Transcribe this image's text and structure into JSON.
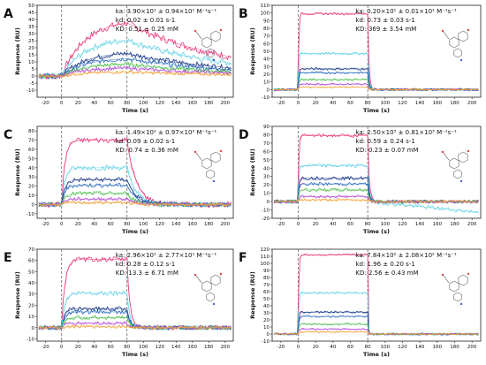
{
  "chart_data": [
    {
      "panel": "A",
      "type": "line",
      "xlabel": "Time (s)",
      "ylabel": "Response (RU)",
      "xlim": [
        -30,
        210
      ],
      "ylim": [
        -15,
        50
      ],
      "xticks": [
        "-20",
        "0",
        "20",
        "40",
        "60",
        "80",
        "100",
        "120",
        "140",
        "160",
        "180",
        "200"
      ],
      "yticks": [
        "-10",
        "-5",
        "0",
        "5",
        "10",
        "15",
        "20",
        "25",
        "30",
        "35",
        "40",
        "45",
        "50"
      ],
      "injection_start": 0,
      "injection_end": 80,
      "annotations": [
        "ka: 3.90×10¹ ± 0.94×10¹ M⁻¹s⁻¹",
        "kd: 0.02 ± 0.01 s-1",
        "KD: 0.51 ± 0.25 mM"
      ],
      "series": [
        {
          "color": "#e8397d",
          "peak": 40,
          "decay": 0.008,
          "noise": 2.6,
          "shape": "slow"
        },
        {
          "color": "#67d3e6",
          "peak": 27,
          "decay": 0.008,
          "noise": 2.3,
          "shape": "slow"
        },
        {
          "color": "#1f3c88",
          "peak": 17,
          "decay": 0.008,
          "noise": 2.0,
          "shape": "slow"
        },
        {
          "color": "#2f6fbf",
          "peak": 13,
          "decay": 0.008,
          "noise": 1.8,
          "shape": "slow"
        },
        {
          "color": "#4fbf4f",
          "peak": 9,
          "decay": 0.008,
          "noise": 1.6,
          "shape": "slow"
        },
        {
          "color": "#b54fd8",
          "peak": 6,
          "decay": 0.008,
          "noise": 1.4,
          "shape": "slow"
        },
        {
          "color": "#f0a43a",
          "peak": 3,
          "decay": 0.008,
          "noise": 1.2,
          "shape": "slow"
        }
      ]
    },
    {
      "panel": "B",
      "type": "line",
      "xlabel": "Time (s)",
      "ylabel": "Response (RU)",
      "xlim": [
        -30,
        210
      ],
      "ylim": [
        -10,
        110
      ],
      "xticks": [
        "-20",
        "0",
        "20",
        "40",
        "60",
        "80",
        "100",
        "120",
        "140",
        "160",
        "180",
        "200"
      ],
      "yticks": [
        "-10",
        "0",
        "10",
        "20",
        "30",
        "40",
        "50",
        "60",
        "70",
        "80",
        "90",
        "100",
        "110"
      ],
      "injection_start": 0,
      "injection_end": 80,
      "annotations": [
        "ka: 0.20×10¹ ± 0.01×10¹ M⁻¹s⁻¹",
        "kd: 0.73 ± 0.03 s-1",
        "KD: 369 ± 3.54 mM"
      ],
      "series": [
        {
          "color": "#e8397d",
          "peak": 99,
          "decay": 0.73,
          "noise": 1.5,
          "shape": "square"
        },
        {
          "color": "#67d3e6",
          "peak": 47,
          "decay": 0.73,
          "noise": 1.8,
          "shape": "square"
        },
        {
          "color": "#1f3c88",
          "peak": 27,
          "decay": 0.73,
          "noise": 1.6,
          "shape": "square"
        },
        {
          "color": "#2f6fbf",
          "peak": 22,
          "decay": 0.73,
          "noise": 1.5,
          "shape": "square"
        },
        {
          "color": "#4fbf4f",
          "peak": 13,
          "decay": 0.73,
          "noise": 1.4,
          "shape": "square"
        },
        {
          "color": "#b54fd8",
          "peak": 7,
          "decay": 0.73,
          "noise": 1.2,
          "shape": "square"
        },
        {
          "color": "#f0a43a",
          "peak": 3,
          "decay": 0.73,
          "noise": 1.0,
          "shape": "square"
        }
      ]
    },
    {
      "panel": "C",
      "type": "line",
      "xlabel": "Time (s)",
      "ylabel": "Response (RU)",
      "xlim": [
        -30,
        210
      ],
      "ylim": [
        -15,
        85
      ],
      "xticks": [
        "-20",
        "0",
        "20",
        "40",
        "60",
        "80",
        "100",
        "120",
        "140",
        "160",
        "180",
        "200"
      ],
      "yticks": [
        "-10",
        "0",
        "10",
        "20",
        "30",
        "40",
        "50",
        "60",
        "70",
        "80"
      ],
      "injection_start": 0,
      "injection_end": 80,
      "annotations": [
        "ka: 1.49×10² ± 0.97×10² M⁻¹s⁻¹",
        "kd: 0.09 ± 0.02 s-1",
        "KD: 0.74 ± 0.36 mM"
      ],
      "series": [
        {
          "color": "#e8397d",
          "peak": 70,
          "decay": 0.09,
          "noise": 3.0,
          "shape": "fast"
        },
        {
          "color": "#67d3e6",
          "peak": 40,
          "decay": 0.09,
          "noise": 3.0,
          "shape": "fast"
        },
        {
          "color": "#1f3c88",
          "peak": 27,
          "decay": 0.09,
          "noise": 2.6,
          "shape": "fast"
        },
        {
          "color": "#2f6fbf",
          "peak": 21,
          "decay": 0.09,
          "noise": 2.4,
          "shape": "fast"
        },
        {
          "color": "#4fbf4f",
          "peak": 12,
          "decay": 0.09,
          "noise": 2.4,
          "shape": "fast"
        },
        {
          "color": "#b54fd8",
          "peak": 6,
          "decay": 0.09,
          "noise": 2.0,
          "shape": "fast"
        },
        {
          "color": "#f0a43a",
          "peak": 2,
          "decay": 0.09,
          "noise": 1.8,
          "shape": "fast"
        }
      ]
    },
    {
      "panel": "D",
      "type": "line",
      "xlabel": "Time (s)",
      "ylabel": "Response (RU)",
      "xlim": [
        -30,
        210
      ],
      "ylim": [
        -20,
        90
      ],
      "xticks": [
        "-20",
        "0",
        "20",
        "40",
        "60",
        "80",
        "100",
        "120",
        "140",
        "160",
        "180",
        "200"
      ],
      "yticks": [
        "-20",
        "-10",
        "0",
        "10",
        "20",
        "30",
        "40",
        "50",
        "60",
        "70",
        "80",
        "90"
      ],
      "injection_start": 0,
      "injection_end": 80,
      "annotations": [
        "ka: 2.50×10³ ± 0.81×10³ M⁻¹s⁻¹",
        "kd: 0.59 ± 0.24 s-1",
        "KD: 0.23 ± 0.07 mM"
      ],
      "series": [
        {
          "color": "#e8397d",
          "peak": 79,
          "decay": 0.59,
          "noise": 2.0,
          "shape": "square"
        },
        {
          "color": "#67d3e6",
          "peak": 43,
          "decay": 0.59,
          "noise": 2.4,
          "shape": "square",
          "drift": -12
        },
        {
          "color": "#1f3c88",
          "peak": 28,
          "decay": 0.59,
          "noise": 2.2,
          "shape": "square"
        },
        {
          "color": "#2f6fbf",
          "peak": 21,
          "decay": 0.59,
          "noise": 2.0,
          "shape": "square"
        },
        {
          "color": "#4fbf4f",
          "peak": 14,
          "decay": 0.59,
          "noise": 2.0,
          "shape": "square"
        },
        {
          "color": "#b54fd8",
          "peak": 6,
          "decay": 0.59,
          "noise": 1.8,
          "shape": "square"
        },
        {
          "color": "#f0a43a",
          "peak": 2,
          "decay": 0.59,
          "noise": 1.6,
          "shape": "square"
        }
      ]
    },
    {
      "panel": "E",
      "type": "line",
      "xlabel": "Time (s)",
      "ylabel": "Response (RU)",
      "xlim": [
        -30,
        210
      ],
      "ylim": [
        -12,
        70
      ],
      "xticks": [
        "-20",
        "0",
        "20",
        "40",
        "60",
        "80",
        "100",
        "120",
        "140",
        "160",
        "180",
        "200"
      ],
      "yticks": [
        "-10",
        "0",
        "10",
        "20",
        "30",
        "40",
        "50",
        "60",
        "70"
      ],
      "injection_start": 0,
      "injection_end": 80,
      "annotations": [
        "ka: 2.96×10¹ ± 2.77×10¹ M⁻¹s⁻¹",
        "kd: 0.28 ± 0.12 s-1",
        "KD: 13.3 ± 6.71 mM"
      ],
      "series": [
        {
          "color": "#e8397d",
          "peak": 61,
          "decay": 0.28,
          "noise": 2.2,
          "shape": "fast"
        },
        {
          "color": "#67d3e6",
          "peak": 31,
          "decay": 0.28,
          "noise": 2.2,
          "shape": "fast"
        },
        {
          "color": "#1f3c88",
          "peak": 17,
          "decay": 0.28,
          "noise": 2.0,
          "shape": "fast"
        },
        {
          "color": "#2f6fbf",
          "peak": 14,
          "decay": 0.28,
          "noise": 1.8,
          "shape": "fast"
        },
        {
          "color": "#4fbf4f",
          "peak": 9,
          "decay": 0.28,
          "noise": 1.8,
          "shape": "fast"
        },
        {
          "color": "#b54fd8",
          "peak": 4,
          "decay": 0.28,
          "noise": 1.6,
          "shape": "fast"
        },
        {
          "color": "#f0a43a",
          "peak": 1,
          "decay": 0.28,
          "noise": 1.4,
          "shape": "fast"
        }
      ]
    },
    {
      "panel": "F",
      "type": "line",
      "xlabel": "Time (s)",
      "ylabel": "Response (RU)",
      "xlim": [
        -30,
        210
      ],
      "ylim": [
        -10,
        120
      ],
      "xticks": [
        "-20",
        "0",
        "20",
        "40",
        "60",
        "80",
        "100",
        "120",
        "140",
        "160",
        "180",
        "200"
      ],
      "yticks": [
        "-10",
        "0",
        "10",
        "20",
        "30",
        "40",
        "50",
        "60",
        "70",
        "80",
        "90",
        "100",
        "110",
        "120"
      ],
      "injection_start": 0,
      "injection_end": 80,
      "annotations": [
        "ka: 7.84×10² ± 2.08×10² M⁻¹s⁻¹",
        "kd: 1.96 ± 0.20 s-1",
        "KD: 2.56 ± 0.43 mM"
      ],
      "series": [
        {
          "color": "#e8397d",
          "peak": 112,
          "decay": 1.96,
          "noise": 1.4,
          "shape": "square"
        },
        {
          "color": "#67d3e6",
          "peak": 58,
          "decay": 1.96,
          "noise": 1.6,
          "shape": "square"
        },
        {
          "color": "#1f3c88",
          "peak": 31,
          "decay": 1.96,
          "noise": 1.5,
          "shape": "square"
        },
        {
          "color": "#2f6fbf",
          "peak": 25,
          "decay": 1.96,
          "noise": 1.4,
          "shape": "square"
        },
        {
          "color": "#4fbf4f",
          "peak": 14,
          "decay": 1.96,
          "noise": 1.4,
          "shape": "square"
        },
        {
          "color": "#b54fd8",
          "peak": 7,
          "decay": 1.96,
          "noise": 1.2,
          "shape": "square"
        },
        {
          "color": "#f0a43a",
          "peak": 3,
          "decay": 1.96,
          "noise": 1.0,
          "shape": "square"
        }
      ]
    }
  ]
}
